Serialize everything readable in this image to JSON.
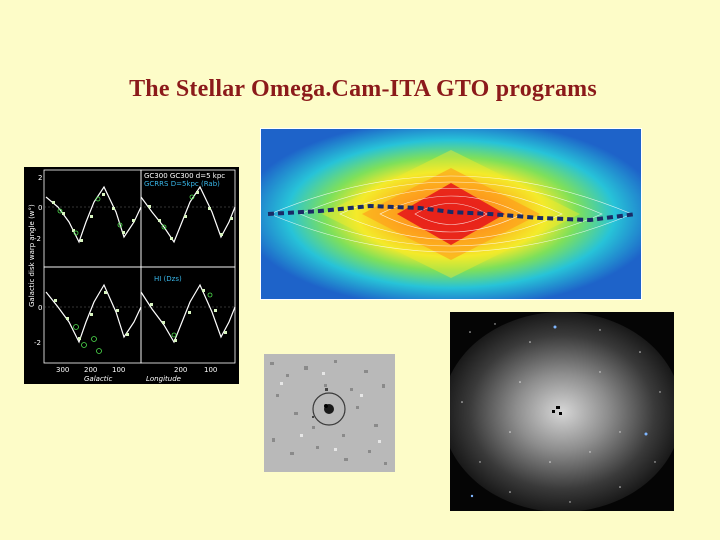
{
  "slide": {
    "title": "The Stellar Omega.Cam-ITA GTO programs",
    "background": "#fdfcc8",
    "title_color": "#8b1a1a"
  },
  "warp_plot": {
    "ylabel": "Galactic disk warp angle (w°)",
    "xlabel_left": "Galactic",
    "xlabel_right": "Longitude",
    "y_ticks": [
      "2",
      "0",
      "-2",
      "0",
      "-2"
    ],
    "x_ticks": [
      "300",
      "200",
      "100",
      "200",
      "100"
    ],
    "legend_tr_top": "GC300 GC300 d=5 kpc",
    "legend_tr_cyan": "GCRRS D=5kpc (Rab)",
    "legend_br_cyan": "HI (Dzs)"
  },
  "images": {
    "milky_way_map": "contour map with warp line",
    "dwarf_cutout": "stellar field cutout with circle",
    "galaxy_field": "resolved stellar galaxy field"
  }
}
